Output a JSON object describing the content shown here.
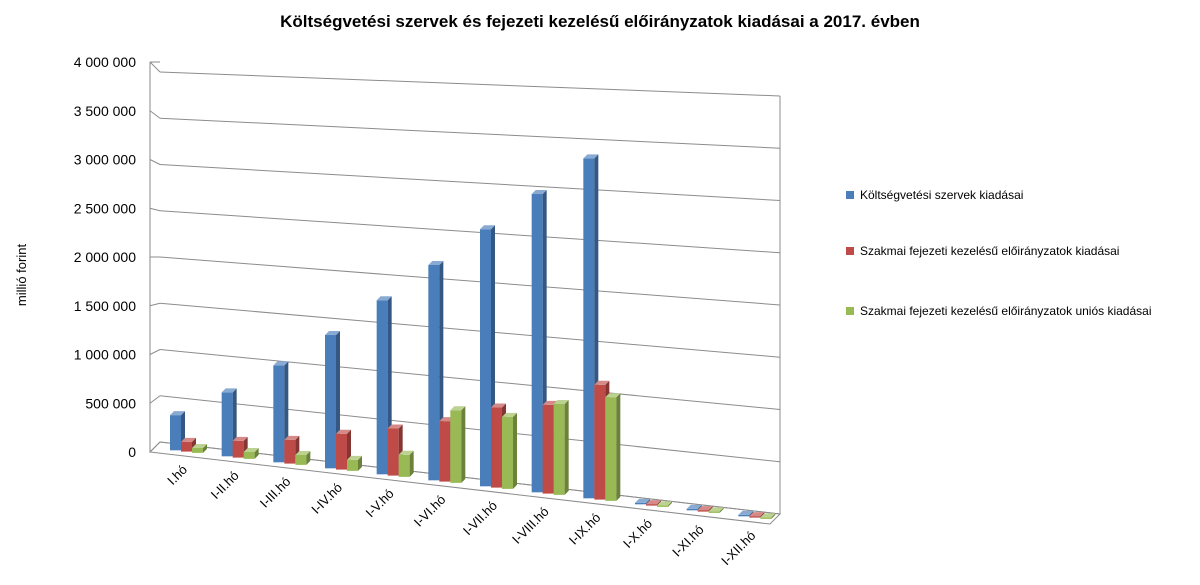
{
  "chart_data": {
    "type": "bar",
    "title": "Költségvetési szervek és fejezeti kezelésű előirányzatok kiadásai a 2017. évben",
    "ylabel": "millió forint",
    "xlabel": "",
    "ylim": [
      0,
      4000000
    ],
    "yticks": [
      {
        "value": 0,
        "label": "0"
      },
      {
        "value": 500000,
        "label": "500 000"
      },
      {
        "value": 1000000,
        "label": "1 000 000"
      },
      {
        "value": 1500000,
        "label": "1 500 000"
      },
      {
        "value": 2000000,
        "label": "2 000 000"
      },
      {
        "value": 2500000,
        "label": "2 500 000"
      },
      {
        "value": 3000000,
        "label": "3 000 000"
      },
      {
        "value": 3500000,
        "label": "3 500 000"
      },
      {
        "value": 4000000,
        "label": "4 000 000"
      }
    ],
    "categories": [
      "I.hó",
      "I-II.hó",
      "I-III.hó",
      "I-IV.hó",
      "I-V.hó",
      "I-VI.hó",
      "I-VII.hó",
      "I-VIII.hó",
      "I-IX.hó",
      "I-X.hó",
      "I-XI.hó",
      "I-XII.hó"
    ],
    "grid": true,
    "legend_position": "right",
    "series": [
      {
        "name": "Költségvetési szervek  kiadásai",
        "color": "#4a7ebb",
        "values": [
          360000,
          650000,
          980000,
          1340000,
          1740000,
          2140000,
          2540000,
          2930000,
          3320000,
          0,
          0,
          0
        ]
      },
      {
        "name": "Szakmai fejezeti kezelésű előirányzatok kiadásai",
        "color": "#be4b48",
        "values": [
          100000,
          170000,
          240000,
          360000,
          470000,
          600000,
          790000,
          870000,
          1120000,
          0,
          0,
          0
        ]
      },
      {
        "name": "Szakmai fejezeti kezelésű előirányzatok uniós kiadásai",
        "color": "#98b954",
        "values": [
          50000,
          70000,
          100000,
          110000,
          220000,
          720000,
          710000,
          890000,
          1010000,
          0,
          0,
          0
        ]
      }
    ]
  }
}
